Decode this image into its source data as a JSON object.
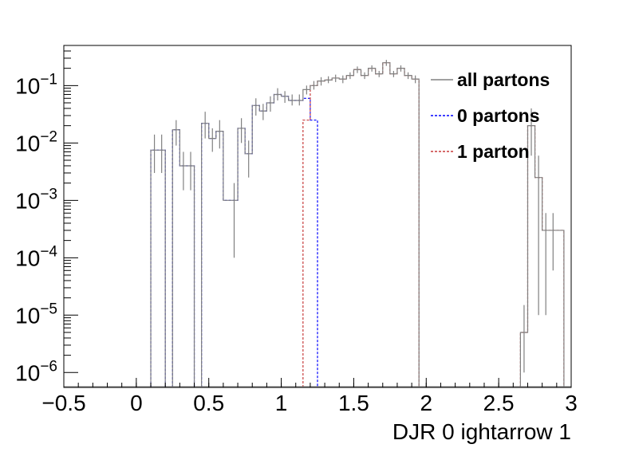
{
  "chart_data": {
    "type": "histogram",
    "title": "",
    "xlabel": "DJR 0 ightarrow 1",
    "ylabel": "",
    "xlim": [
      -0.5,
      3.0
    ],
    "ylim": [
      5.5e-07,
      0.5
    ],
    "yscale": "log",
    "grid": false,
    "legend_position": "top-right",
    "x_ticks": [
      "−0.5",
      "0",
      "0.5",
      "1",
      "1.5",
      "2",
      "2.5",
      "3"
    ],
    "x_tick_values": [
      -0.5,
      0,
      0.5,
      1,
      1.5,
      2,
      2.5,
      3
    ],
    "y_ticks": [
      {
        "base": "10",
        "exp": "−6",
        "value": 1e-06
      },
      {
        "base": "10",
        "exp": "−5",
        "value": 1e-05
      },
      {
        "base": "10",
        "exp": "−4",
        "value": 0.0001
      },
      {
        "base": "10",
        "exp": "−3",
        "value": 0.001
      },
      {
        "base": "10",
        "exp": "−2",
        "value": 0.01
      },
      {
        "base": "10",
        "exp": "−1",
        "value": 0.1
      }
    ],
    "bin_width": 0.05,
    "series": [
      {
        "name": "all partons",
        "color": "#808080",
        "style": "solid",
        "bins": [
          {
            "x": 0.125,
            "y": 0.0075,
            "err": [
              0.003,
              0.014
            ]
          },
          {
            "x": 0.175,
            "y": 0.0075,
            "err": [
              0.003,
              0.014
            ]
          },
          {
            "x": 0.275,
            "y": 0.017,
            "err": [
              0.009,
              0.025
            ]
          },
          {
            "x": 0.325,
            "y": 0.004,
            "err": [
              0.0015,
              0.007
            ]
          },
          {
            "x": 0.375,
            "y": 0.004,
            "err": [
              0.0015,
              0.007
            ]
          },
          {
            "x": 0.475,
            "y": 0.022,
            "err": [
              0.012,
              0.035
            ]
          },
          {
            "x": 0.525,
            "y": 0.012,
            "err": [
              0.007,
              0.018
            ]
          },
          {
            "x": 0.575,
            "y": 0.016,
            "err": [
              0.008,
              0.025
            ]
          },
          {
            "x": 0.625,
            "y": 0.001,
            "err": 0
          },
          {
            "x": 0.675,
            "y": 0.001,
            "err": [
              0.0001,
              0.002
            ]
          },
          {
            "x": 0.725,
            "y": 0.018,
            "err": [
              0.01,
              0.027
            ]
          },
          {
            "x": 0.775,
            "y": 0.0065,
            "err": [
              0.0025,
              0.011
            ]
          },
          {
            "x": 0.825,
            "y": 0.045,
            "err": [
              0.03,
              0.06
            ]
          },
          {
            "x": 0.875,
            "y": 0.036,
            "err": [
              0.025,
              0.048
            ]
          },
          {
            "x": 0.925,
            "y": 0.05,
            "err": [
              0.035,
              0.065
            ]
          },
          {
            "x": 0.975,
            "y": 0.07,
            "err": [
              0.055,
              0.09
            ]
          },
          {
            "x": 1.025,
            "y": 0.065,
            "err": [
              0.05,
              0.08
            ]
          },
          {
            "x": 1.075,
            "y": 0.055,
            "err": [
              0.045,
              0.07
            ]
          },
          {
            "x": 1.125,
            "y": 0.055,
            "err": [
              0.045,
              0.07
            ]
          },
          {
            "x": 1.175,
            "y": 0.085,
            "err": [
              0.07,
              0.1
            ]
          },
          {
            "x": 1.225,
            "y": 0.1,
            "err": [
              0.085,
              0.12
            ]
          },
          {
            "x": 1.275,
            "y": 0.12,
            "err": [
              0.1,
              0.14
            ]
          },
          {
            "x": 1.325,
            "y": 0.125,
            "err": [
              0.11,
              0.145
            ]
          },
          {
            "x": 1.375,
            "y": 0.135,
            "err": [
              0.115,
              0.155
            ]
          },
          {
            "x": 1.425,
            "y": 0.13,
            "err": [
              0.11,
              0.15
            ]
          },
          {
            "x": 1.475,
            "y": 0.15,
            "err": [
              0.13,
              0.17
            ]
          },
          {
            "x": 1.525,
            "y": 0.19,
            "err": [
              0.165,
              0.215
            ]
          },
          {
            "x": 1.575,
            "y": 0.15,
            "err": [
              0.13,
              0.17
            ]
          },
          {
            "x": 1.625,
            "y": 0.2,
            "err": [
              0.175,
              0.225
            ]
          },
          {
            "x": 1.675,
            "y": 0.16,
            "err": [
              0.14,
              0.18
            ]
          },
          {
            "x": 1.725,
            "y": 0.25,
            "err": [
              0.22,
              0.28
            ]
          },
          {
            "x": 1.775,
            "y": 0.16,
            "err": [
              0.14,
              0.18
            ]
          },
          {
            "x": 1.825,
            "y": 0.2,
            "err": [
              0.175,
              0.225
            ]
          },
          {
            "x": 1.875,
            "y": 0.15,
            "err": [
              0.13,
              0.17
            ]
          },
          {
            "x": 1.925,
            "y": 0.13,
            "err": [
              0.11,
              0.15
            ]
          },
          {
            "x": 2.675,
            "y": 5e-06,
            "err": [
              1e-06,
              1.5e-05
            ]
          },
          {
            "x": 2.725,
            "y": 0.02,
            "err": [
              0.006,
              0.04
            ]
          },
          {
            "x": 2.775,
            "y": 0.0025,
            "err": [
              1e-05,
              0.006
            ]
          },
          {
            "x": 2.825,
            "y": 0.0003,
            "err": [
              1e-05,
              0.0006
            ]
          },
          {
            "x": 2.875,
            "y": 0.0003,
            "err": [
              6e-05,
              0.0006
            ]
          },
          {
            "x": 2.925,
            "y": 0.0003,
            "err": 0
          }
        ]
      },
      {
        "name": "0 partons",
        "color": "#0000ff",
        "style": "dashed",
        "bins": [
          {
            "x": 0.125,
            "y": 0.0075
          },
          {
            "x": 0.175,
            "y": 0.0075
          },
          {
            "x": 0.275,
            "y": 0.017
          },
          {
            "x": 0.325,
            "y": 0.004
          },
          {
            "x": 0.375,
            "y": 0.004
          },
          {
            "x": 0.475,
            "y": 0.022
          },
          {
            "x": 0.525,
            "y": 0.012
          },
          {
            "x": 0.575,
            "y": 0.016
          },
          {
            "x": 0.625,
            "y": 0.001
          },
          {
            "x": 0.675,
            "y": 0.001
          },
          {
            "x": 0.725,
            "y": 0.018
          },
          {
            "x": 0.775,
            "y": 0.0065
          },
          {
            "x": 0.825,
            "y": 0.045
          },
          {
            "x": 0.875,
            "y": 0.036
          },
          {
            "x": 0.925,
            "y": 0.05
          },
          {
            "x": 0.975,
            "y": 0.07
          },
          {
            "x": 1.025,
            "y": 0.065
          },
          {
            "x": 1.075,
            "y": 0.055
          },
          {
            "x": 1.125,
            "y": 0.055
          },
          {
            "x": 1.175,
            "y": 0.06
          },
          {
            "x": 1.225,
            "y": 0.025
          }
        ]
      },
      {
        "name": "1 parton",
        "color": "#c83c3c",
        "style": "dashed",
        "bins": [
          {
            "x": 1.175,
            "y": 0.025
          },
          {
            "x": 1.225,
            "y": 0.1
          },
          {
            "x": 1.275,
            "y": 0.12
          },
          {
            "x": 1.325,
            "y": 0.125
          },
          {
            "x": 1.375,
            "y": 0.135
          },
          {
            "x": 1.425,
            "y": 0.13
          },
          {
            "x": 1.475,
            "y": 0.15
          },
          {
            "x": 1.525,
            "y": 0.19
          },
          {
            "x": 1.575,
            "y": 0.15
          },
          {
            "x": 1.625,
            "y": 0.2
          },
          {
            "x": 1.675,
            "y": 0.16
          },
          {
            "x": 1.725,
            "y": 0.25
          },
          {
            "x": 1.775,
            "y": 0.16
          },
          {
            "x": 1.825,
            "y": 0.2
          },
          {
            "x": 1.875,
            "y": 0.15
          },
          {
            "x": 1.925,
            "y": 0.13
          },
          {
            "x": 2.675,
            "y": 5e-06
          },
          {
            "x": 2.725,
            "y": 0.02
          },
          {
            "x": 2.775,
            "y": 0.0025
          },
          {
            "x": 2.825,
            "y": 0.0003
          },
          {
            "x": 2.875,
            "y": 0.0003
          },
          {
            "x": 2.925,
            "y": 0.0003
          }
        ]
      }
    ]
  }
}
